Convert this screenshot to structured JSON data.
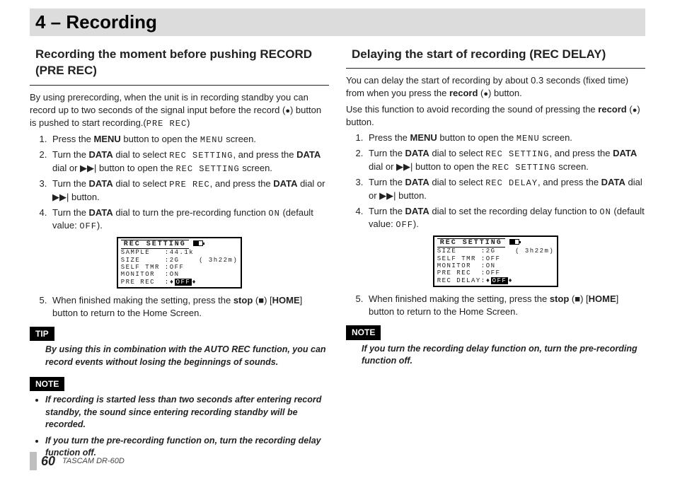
{
  "page_title": "4 – Recording",
  "footer": {
    "page_number": "60",
    "product": "TASCAM  DR-60D"
  },
  "left": {
    "heading": "Recording the moment before pushing RECORD (PRE REC)",
    "intro_a": "By using prerecording, when the unit is in recording standby you can record up to two seconds of the signal input before the record (",
    "intro_b": ") button is pushed to start recording.(",
    "intro_c": ")",
    "menu_tok": "PRE REC",
    "steps": {
      "s1a": "Press the ",
      "s1b": " button to open the ",
      "s1c": " screen.",
      "s2a": "Turn the ",
      "s2b": " dial to select ",
      "s2c": ", and press the ",
      "s2d": " dial or ",
      "s2e": " button to open the ",
      "s2f": " screen.",
      "s3a": "Turn the ",
      "s3b": " dial to select ",
      "s3c": ", and press the ",
      "s3d": " dial or ",
      "s3e": " button.",
      "s4a": "Turn the ",
      "s4b": " dial to turn the pre-recording function ",
      "s4c": " (default value: ",
      "s4d": ").",
      "s5a": "When finished making the setting, press the ",
      "s5b": " (",
      "s5c": ") [",
      "s5d": "] button to return to the Home Screen."
    },
    "tokens": {
      "MENU": "MENU",
      "DATA": "DATA",
      "REC_SETTING": "REC SETTING",
      "PRE_REC": "PRE REC",
      "ON": "ON",
      "OFF": "OFF",
      "stop": "stop",
      "HOME": "HOME",
      "MENU_MONO": "MENU"
    },
    "tip_label": "TIP",
    "tip_body": "By using this in combination with the AUTO REC function, you can record events without losing the beginnings of sounds.",
    "note_label": "NOTE",
    "note1": "If recording is started less than two seconds after entering record standby, the sound since entering recording standby will be recorded.",
    "note2": "If you turn the pre-recording function on, turn the recording delay function off.",
    "lcd": {
      "title": "REC SETTING",
      "rows": [
        "SAMPLE   :44.1k",
        "SIZE     :2G    ( 3h22m)",
        "SELF TMR :OFF",
        "MONITOR  :ON"
      ],
      "last_label": "PRE REC  :",
      "last_value": "OFF"
    }
  },
  "right": {
    "heading": "Delaying the start of recording (REC DELAY)",
    "p1a": "You can delay the start of recording by about 0.3 seconds (fixed time) from when you press the ",
    "p1b": " (",
    "p1c": ") button.",
    "p2a": "Use this function to avoid recording the sound of pressing the ",
    "p2b": " (",
    "p2c": ") button.",
    "tokens": {
      "record": "record",
      "MENU": "MENU",
      "DATA": "DATA",
      "REC_SETTING": "REC SETTING",
      "REC_DELAY": "REC DELAY",
      "ON": "ON",
      "OFF": "OFF",
      "stop": "stop",
      "HOME": "HOME",
      "MENU_MONO": "MENU"
    },
    "steps": {
      "s1a": "Press the ",
      "s1b": " button to open the ",
      "s1c": " screen.",
      "s2a": "Turn the ",
      "s2b": " dial to select ",
      "s2c": ", and press the ",
      "s2d": " dial or ",
      "s2e": " button to open the ",
      "s2f": " screen.",
      "s3a": "Turn the ",
      "s3b": " dial to select ",
      "s3c": ", and press the ",
      "s3d": " dial or ",
      "s3e": " button.",
      "s4a": "Turn the ",
      "s4b": " dial to set the recording delay function to ",
      "s4c": " (default value: ",
      "s4d": ").",
      "s5a": "When finished making the setting, press the ",
      "s5b": " (",
      "s5c": ") [",
      "s5d": "] button to return to the Home Screen."
    },
    "note_label": "NOTE",
    "note1": "If you turn the recording delay function on, turn the pre-recording function off.",
    "lcd": {
      "title": "REC SETTING",
      "rows": [
        "SIZE     :2G    ( 3h22m)",
        "SELF TMR :OFF",
        "MONITOR  :ON",
        "PRE REC  :OFF"
      ],
      "last_label": "REC DELAY:",
      "last_value": "OFF"
    }
  },
  "symbols": {
    "rec_dot": "●",
    "fwd": "▶▶|",
    "stop": "■"
  }
}
